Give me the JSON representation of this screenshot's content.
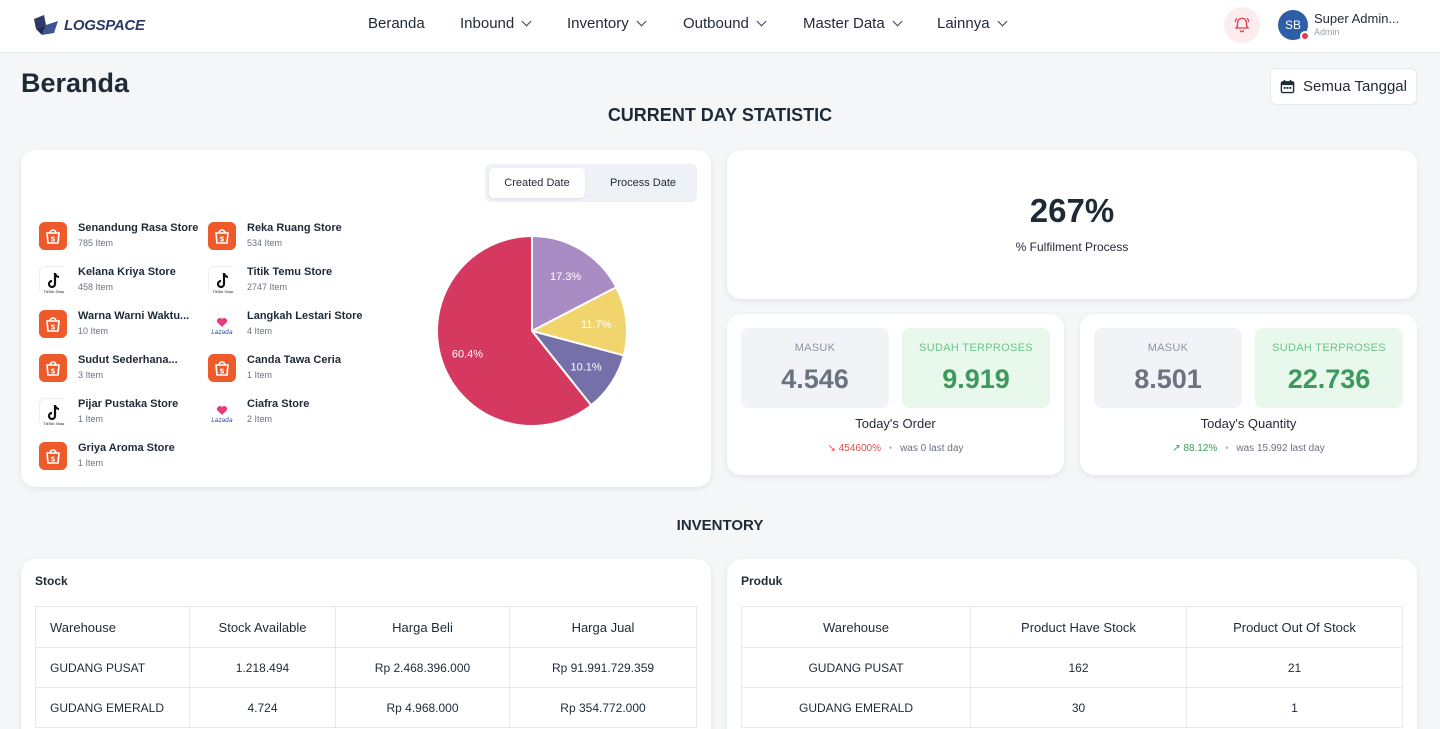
{
  "app": {
    "logo_text": "LOGSPACE"
  },
  "nav": {
    "items": [
      {
        "label": "Beranda",
        "dropdown": false
      },
      {
        "label": "Inbound",
        "dropdown": true
      },
      {
        "label": "Inventory",
        "dropdown": true
      },
      {
        "label": "Outbound",
        "dropdown": true
      },
      {
        "label": "Master Data",
        "dropdown": true
      },
      {
        "label": "Lainnya",
        "dropdown": true
      }
    ]
  },
  "user": {
    "initials": "SB",
    "name": "Super Admin...",
    "role": "Admin"
  },
  "page": {
    "title": "Beranda",
    "date_filter": "Semua Tanggal"
  },
  "sections": {
    "current_day": "CURRENT DAY STATISTIC",
    "inventory": "INVENTORY"
  },
  "stats_card": {
    "toggle": {
      "options": [
        "Created Date",
        "Process Date"
      ],
      "active": "Created Date"
    },
    "stores": [
      {
        "name": "Senandung Rasa Store",
        "count": "785 Item",
        "platform": "shopee"
      },
      {
        "name": "Reka Ruang Store",
        "count": "534 Item",
        "platform": "shopee"
      },
      {
        "name": "Kelana Kriya Store",
        "count": "458 Item",
        "platform": "tiktok"
      },
      {
        "name": "Titik Temu Store",
        "count": "2747 Item",
        "platform": "tiktok"
      },
      {
        "name": "Warna Warni Waktu...",
        "count": "10 Item",
        "platform": "shopee"
      },
      {
        "name": "Langkah Lestari Store",
        "count": "4 Item",
        "platform": "lazada"
      },
      {
        "name": "Sudut Sederhana...",
        "count": "3 Item",
        "platform": "shopee"
      },
      {
        "name": "Canda Tawa Ceria",
        "count": "1 Item",
        "platform": "shopee"
      },
      {
        "name": "Pijar Pustaka Store",
        "count": "1 Item",
        "platform": "tiktok"
      },
      {
        "name": "Ciafra Store",
        "count": "2 Item",
        "platform": "lazada"
      },
      {
        "name": "Griya Aroma Store",
        "count": "1 Item",
        "platform": "shopee"
      }
    ]
  },
  "chart_data": {
    "type": "pie",
    "slices": [
      {
        "label": "17.3%",
        "value": 17.3,
        "color": "#a98cc4"
      },
      {
        "label": "11.7%",
        "value": 11.7,
        "color": "#f1d46b"
      },
      {
        "label": "10.1%",
        "value": 10.1,
        "color": "#7571a8"
      },
      {
        "label": "60.4%",
        "value": 60.4,
        "color": "#d6395f"
      }
    ]
  },
  "fulfilment": {
    "value": "267%",
    "label": "% Fulfilment Process"
  },
  "today_order": {
    "masuk_label": "MASUK",
    "masuk_value": "4.546",
    "proses_label": "SUDAH TERPROSES",
    "proses_value": "9.919",
    "title": "Today's Order",
    "trend_value": "454600%",
    "trend_dir": "down",
    "trend_note": "was 0 last day"
  },
  "today_quantity": {
    "masuk_label": "MASUK",
    "masuk_value": "8.501",
    "proses_label": "SUDAH TERPROSES",
    "proses_value": "22.736",
    "title": "Today's Quantity",
    "trend_value": "88.12%",
    "trend_dir": "up",
    "trend_note": "was 15.992 last day"
  },
  "stock": {
    "title": "Stock",
    "headers": [
      "Warehouse",
      "Stock Available",
      "Harga Beli",
      "Harga Jual"
    ],
    "rows": [
      [
        "GUDANG PUSAT",
        "1.218.494",
        "Rp 2.468.396.000",
        "Rp 91.991.729.359"
      ],
      [
        "GUDANG EMERALD",
        "4.724",
        "Rp 4.968.000",
        "Rp 354.772.000"
      ]
    ]
  },
  "produk": {
    "title": "Produk",
    "headers": [
      "Warehouse",
      "Product Have Stock",
      "Product Out Of Stock"
    ],
    "rows": [
      [
        "GUDANG PUSAT",
        "162",
        "21"
      ],
      [
        "GUDANG EMERALD",
        "30",
        "1"
      ]
    ]
  },
  "colors": {
    "accent": "#2f5ea8",
    "green": "#3d9a5c",
    "red": "#e14a4a"
  }
}
